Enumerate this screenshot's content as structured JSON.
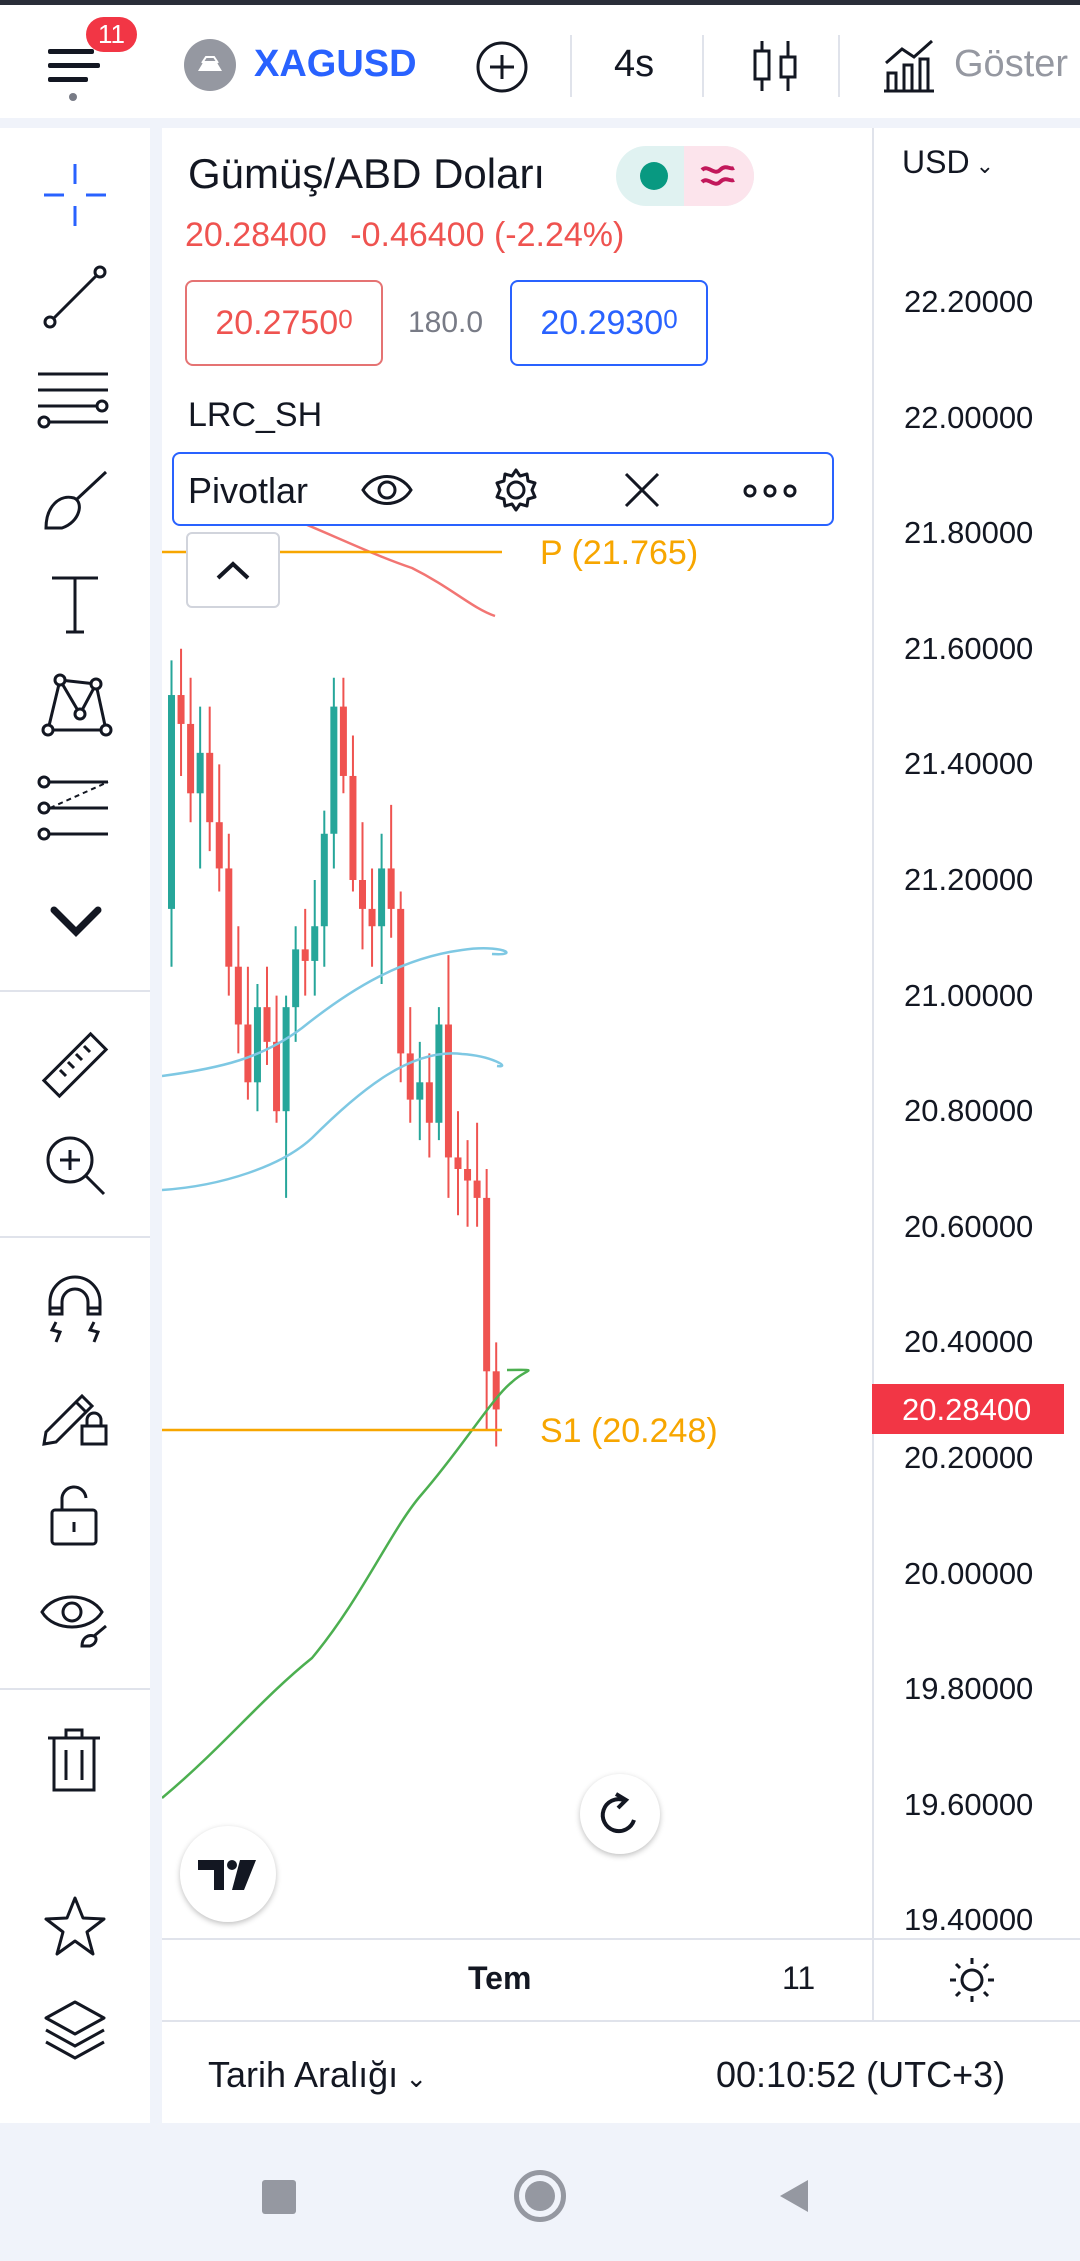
{
  "header": {
    "notification_count": "11",
    "symbol": "XAGUSD",
    "interval": "4s",
    "indicators_label": "Göster"
  },
  "legend": {
    "title": "Gümüş/ABD Doları",
    "last": "20.28400",
    "change": "-0.46400",
    "change_pct": "(-2.24%)",
    "bid": "20.2750",
    "bid_sup": "0",
    "spread": "180.0",
    "ask": "20.2930",
    "ask_sup": "0",
    "study": "LRC_SH"
  },
  "pivot_toolbar": {
    "label": "Pivotlar"
  },
  "pivots": {
    "p_label": "P (21.765)",
    "s1_label": "S1 (20.248)"
  },
  "price_axis": {
    "currency": "USD",
    "labels": [
      "22.20000",
      "22.00000",
      "21.80000",
      "21.60000",
      "21.40000",
      "21.20000",
      "21.00000",
      "20.80000",
      "20.60000",
      "20.40000",
      "20.20000",
      "20.00000",
      "19.80000",
      "19.60000",
      "19.40000"
    ],
    "current_price": "20.28400"
  },
  "time_axis": {
    "labels": [
      "Tem",
      "11"
    ]
  },
  "bottom": {
    "date_range": "Tarih Aralığı",
    "clock": "00:10:52 (UTC+3)"
  },
  "colors": {
    "up": "#26a69a",
    "down": "#ef5350",
    "pivot": "#f7a600",
    "accent": "#2962ff"
  },
  "chart_data": {
    "type": "candlestick",
    "ylim": [
      19.37,
      22.33
    ],
    "candles": [
      {
        "o": 21.15,
        "h": 21.58,
        "l": 21.05,
        "c": 21.52
      },
      {
        "o": 21.52,
        "h": 21.6,
        "l": 21.38,
        "c": 21.47
      },
      {
        "o": 21.47,
        "h": 21.55,
        "l": 21.3,
        "c": 21.35
      },
      {
        "o": 21.35,
        "h": 21.5,
        "l": 21.22,
        "c": 21.42
      },
      {
        "o": 21.42,
        "h": 21.5,
        "l": 21.25,
        "c": 21.3
      },
      {
        "o": 21.3,
        "h": 21.4,
        "l": 21.18,
        "c": 21.22
      },
      {
        "o": 21.22,
        "h": 21.28,
        "l": 21.0,
        "c": 21.05
      },
      {
        "o": 21.05,
        "h": 21.12,
        "l": 20.9,
        "c": 20.95
      },
      {
        "o": 20.95,
        "h": 21.05,
        "l": 20.82,
        "c": 20.85
      },
      {
        "o": 20.85,
        "h": 21.02,
        "l": 20.8,
        "c": 20.98
      },
      {
        "o": 20.98,
        "h": 21.05,
        "l": 20.88,
        "c": 20.92
      },
      {
        "o": 20.92,
        "h": 21.0,
        "l": 20.78,
        "c": 20.8
      },
      {
        "o": 20.8,
        "h": 21.0,
        "l": 20.65,
        "c": 20.98
      },
      {
        "o": 20.98,
        "h": 21.12,
        "l": 20.92,
        "c": 21.08
      },
      {
        "o": 21.08,
        "h": 21.15,
        "l": 21.0,
        "c": 21.06
      },
      {
        "o": 21.06,
        "h": 21.2,
        "l": 21.0,
        "c": 21.12
      },
      {
        "o": 21.12,
        "h": 21.32,
        "l": 21.05,
        "c": 21.28
      },
      {
        "o": 21.28,
        "h": 21.55,
        "l": 21.22,
        "c": 21.5
      },
      {
        "o": 21.5,
        "h": 21.55,
        "l": 21.35,
        "c": 21.38
      },
      {
        "o": 21.38,
        "h": 21.45,
        "l": 21.18,
        "c": 21.2
      },
      {
        "o": 21.2,
        "h": 21.3,
        "l": 21.08,
        "c": 21.15
      },
      {
        "o": 21.15,
        "h": 21.22,
        "l": 21.05,
        "c": 21.12
      },
      {
        "o": 21.12,
        "h": 21.28,
        "l": 21.02,
        "c": 21.22
      },
      {
        "o": 21.22,
        "h": 21.33,
        "l": 21.1,
        "c": 21.15
      },
      {
        "o": 21.15,
        "h": 21.18,
        "l": 20.85,
        "c": 20.9
      },
      {
        "o": 20.9,
        "h": 20.98,
        "l": 20.78,
        "c": 20.82
      },
      {
        "o": 20.82,
        "h": 20.92,
        "l": 20.75,
        "c": 20.85
      },
      {
        "o": 20.85,
        "h": 20.9,
        "l": 20.72,
        "c": 20.78
      },
      {
        "o": 20.78,
        "h": 20.98,
        "l": 20.75,
        "c": 20.95
      },
      {
        "o": 20.95,
        "h": 21.07,
        "l": 20.65,
        "c": 20.72
      },
      {
        "o": 20.72,
        "h": 20.8,
        "l": 20.62,
        "c": 20.7
      },
      {
        "o": 20.7,
        "h": 20.75,
        "l": 20.6,
        "c": 20.68
      },
      {
        "o": 20.68,
        "h": 20.78,
        "l": 20.6,
        "c": 20.65
      },
      {
        "o": 20.65,
        "h": 20.7,
        "l": 20.25,
        "c": 20.35
      },
      {
        "o": 20.35,
        "h": 20.4,
        "l": 20.22,
        "c": 20.284
      }
    ]
  }
}
